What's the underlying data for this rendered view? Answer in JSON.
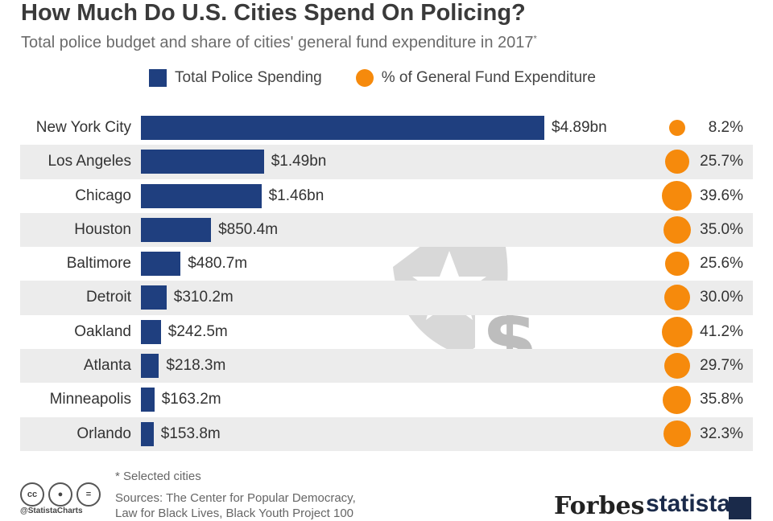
{
  "title": "How Much Do U.S. Cities Spend On Policing?",
  "subtitle": "Total police budget and share of cities' general fund expenditure in 2017",
  "subtitle_mark": "*",
  "legend": {
    "bar_label": "Total Police Spending",
    "dot_label": "% of General Fund Expenditure"
  },
  "colors": {
    "bar": "#1f3f7f",
    "dot": "#f68a0c",
    "shade": "#ececec"
  },
  "chart_data": {
    "type": "bar",
    "orientation": "horizontal",
    "categories": [
      "New York City",
      "Los Angeles",
      "Chicago",
      "Houston",
      "Baltimore",
      "Detroit",
      "Oakland",
      "Atlanta",
      "Minneapolis",
      "Orlando"
    ],
    "series": [
      {
        "name": "Total Police Spending",
        "values": [
          4890,
          1490,
          1460,
          850.4,
          480.7,
          310.2,
          242.5,
          218.3,
          163.2,
          153.8
        ],
        "labels": [
          "$4.89bn",
          "$1.49bn",
          "$1.46bn",
          "$850.4m",
          "$480.7m",
          "$310.2m",
          "$242.5m",
          "$218.3m",
          "$163.2m",
          "$153.8m"
        ]
      },
      {
        "name": "% of General Fund Expenditure",
        "values": [
          8.2,
          25.7,
          39.6,
          35.0,
          25.6,
          30.0,
          41.2,
          29.7,
          35.8,
          32.3
        ],
        "labels": [
          "8.2%",
          "25.7%",
          "39.6%",
          "35.0%",
          "25.6%",
          "30.0%",
          "41.2%",
          "29.7%",
          "35.8%",
          "32.3%"
        ]
      }
    ],
    "legend_position": "top"
  },
  "footer": {
    "note": "* Selected cities",
    "sources_line1": "Sources: The Center for Popular Democracy,",
    "sources_line2": "Law for Black Lives, Black Youth Project 100",
    "handle": "@StatistaCharts",
    "forbes": "Forbes",
    "statista": "statista"
  },
  "icons": {
    "watermark": "police-badge-dollar-icon",
    "license": "creative-commons-icon"
  }
}
